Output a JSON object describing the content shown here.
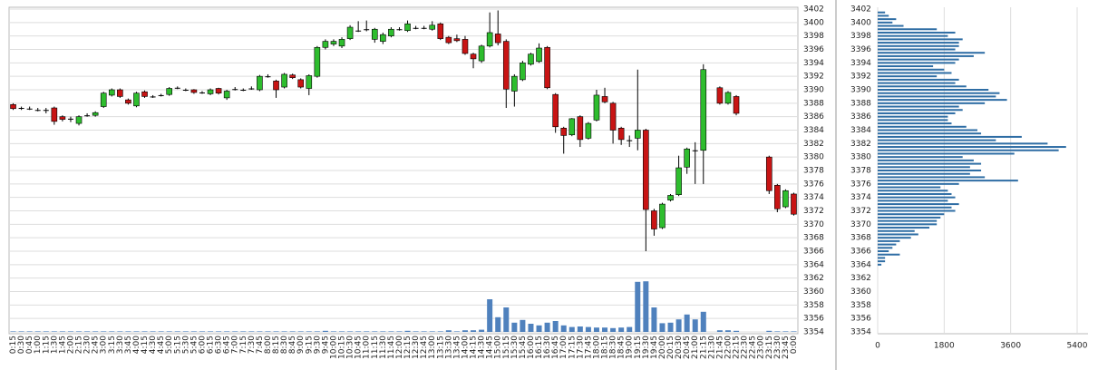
{
  "chart_data": [
    {
      "type": "candlestick",
      "categories": [
        "0:15",
        "0:30",
        "0:45",
        "1:00",
        "1:15",
        "1:30",
        "1:45",
        "2:00",
        "2:15",
        "2:30",
        "2:45",
        "3:00",
        "3:15",
        "3:30",
        "3:45",
        "4:00",
        "4:15",
        "4:30",
        "4:45",
        "5:00",
        "5:15",
        "5:30",
        "5:45",
        "6:00",
        "6:15",
        "6:30",
        "6:45",
        "7:00",
        "7:15",
        "7:30",
        "7:45",
        "8:00",
        "8:15",
        "8:30",
        "8:45",
        "9:00",
        "9:15",
        "9:30",
        "9:45",
        "10:00",
        "10:15",
        "10:30",
        "10:45",
        "11:00",
        "11:15",
        "11:30",
        "11:45",
        "12:00",
        "12:15",
        "12:30",
        "12:45",
        "13:00",
        "13:15",
        "13:30",
        "13:45",
        "14:00",
        "14:15",
        "14:30",
        "14:45",
        "15:00",
        "15:15",
        "15:30",
        "15:45",
        "16:00",
        "16:15",
        "16:30",
        "16:45",
        "17:00",
        "17:15",
        "17:30",
        "17:45",
        "18:00",
        "18:15",
        "18:30",
        "18:45",
        "19:00",
        "19:15",
        "19:30",
        "19:45",
        "20:00",
        "20:15",
        "20:30",
        "20:45",
        "21:00",
        "21:15",
        "21:30",
        "21:45",
        "22:00",
        "22:15",
        "22:30",
        "22:45",
        "23:00",
        "23:15",
        "23:30",
        "23:45",
        "0:00"
      ],
      "open": [
        3387.8,
        3387.3,
        3387.2,
        3387,
        3387,
        3387.3,
        3386,
        3385.7,
        3385,
        3386.2,
        3386.2,
        3387.5,
        3389.2,
        3390,
        3388.5,
        3387.6,
        3389.7,
        3389,
        3389.2,
        3389.3,
        3390.3,
        3390,
        3390,
        3389.6,
        3389.4,
        3390.2,
        3388.8,
        3390.1,
        3390,
        3390.2,
        3390,
        3392,
        3391.3,
        3390.4,
        3392.2,
        3391.5,
        3390.2,
        3392,
        3396.3,
        3396.8,
        3396.5,
        3397.6,
        3398.8,
        3399,
        3397.5,
        3397.2,
        3398,
        3399,
        3398.8,
        3399.2,
        3399.2,
        3399,
        3399.8,
        3397.8,
        3397.6,
        3397.5,
        3395.3,
        3394.3,
        3396.5,
        3398.3,
        3397.2,
        3389.8,
        3391.5,
        3393.8,
        3394.2,
        3396.3,
        3389.3,
        3384.3,
        3383.3,
        3386,
        3382.8,
        3385.5,
        3389,
        3388,
        3384.3,
        3382.5,
        3382.8,
        3384,
        3372,
        3369.5,
        3373.6,
        3374.4,
        3378.5,
        3381,
        3381,
        null,
        3390.3,
        3388,
        3389,
        null,
        null,
        null,
        3380,
        3375.8,
        3372.6,
        3374.5
      ],
      "high": [
        3388,
        3387.5,
        3387.5,
        3387.3,
        3387.3,
        3387.5,
        3386.2,
        3386,
        3386.2,
        3386.5,
        3386.8,
        3389.7,
        3390.2,
        3390.2,
        3388.7,
        3389.7,
        3389.9,
        3389.2,
        3389.4,
        3390.4,
        3390.5,
        3390.2,
        3390.1,
        3389.8,
        3390.2,
        3390.3,
        3390,
        3390.4,
        3390.2,
        3390.5,
        3392.2,
        3392.3,
        3391.5,
        3392.5,
        3392.4,
        3391.7,
        3392.3,
        3396.5,
        3397.5,
        3397.5,
        3397.8,
        3399.6,
        3400.2,
        3400.3,
        3399.2,
        3398.5,
        3399.3,
        3399.3,
        3400.3,
        3399.5,
        3399.5,
        3400.2,
        3400,
        3398,
        3398.2,
        3398,
        3395.5,
        3396.7,
        3401.5,
        3401.8,
        3397.5,
        3392.3,
        3394.3,
        3395.5,
        3396.9,
        3396.5,
        3389.5,
        3384.5,
        3385.8,
        3386.2,
        3385.2,
        3390,
        3390.3,
        3388.2,
        3384.5,
        3383.2,
        3393,
        3384.2,
        3372.3,
        3373.2,
        3374.5,
        3380.2,
        3381.4,
        3382.2,
        3393.8,
        null,
        3390.5,
        3389.8,
        3389.2,
        null,
        null,
        null,
        3380.2,
        3376,
        3375.2,
        3374.7
      ],
      "low": [
        3387,
        3387,
        3387,
        3386.8,
        3386.5,
        3384.8,
        3385.3,
        3385.2,
        3384.7,
        3386,
        3386,
        3387.3,
        3389,
        3388.8,
        3387.8,
        3387.4,
        3388.8,
        3388.8,
        3389,
        3389.1,
        3390.1,
        3389.8,
        3389.4,
        3389.4,
        3389.2,
        3389.3,
        3388.5,
        3389.9,
        3389.8,
        3390,
        3389.8,
        3391.8,
        3388.8,
        3390.2,
        3391.6,
        3390.2,
        3389.2,
        3391.8,
        3396,
        3396.5,
        3396.2,
        3397.4,
        3398.6,
        3398.7,
        3397,
        3396.8,
        3397.8,
        3398.8,
        3398.6,
        3399,
        3399,
        3398.8,
        3397.4,
        3396.8,
        3397.1,
        3395.2,
        3393.2,
        3394,
        3396.3,
        3396.6,
        3387.3,
        3387.5,
        3391.3,
        3393.6,
        3394,
        3390.1,
        3383.6,
        3380.5,
        3383.1,
        3381.5,
        3382.6,
        3385.3,
        3388,
        3382,
        3381.8,
        3381.5,
        3381,
        3366,
        3368.3,
        3369.3,
        3373.4,
        3374.2,
        3377.5,
        3376,
        3376,
        null,
        3387.8,
        3387.8,
        3386.2,
        null,
        null,
        null,
        3374.5,
        3371.8,
        3372.4,
        3371.3
      ],
      "close": [
        3387.2,
        3387.3,
        3387.2,
        3387,
        3387,
        3385.3,
        3385.6,
        3385.7,
        3386,
        3386.2,
        3386.6,
        3389.5,
        3390,
        3389,
        3388,
        3389.5,
        3389,
        3389,
        3389.2,
        3390.2,
        3390.3,
        3390,
        3389.6,
        3389.6,
        3390,
        3389.5,
        3389.8,
        3390.1,
        3390,
        3390.2,
        3392,
        3392,
        3390,
        3392.3,
        3391.8,
        3390.4,
        3392.1,
        3396.3,
        3397.2,
        3397.2,
        3397.5,
        3399.3,
        3398.8,
        3399,
        3399,
        3398.2,
        3399,
        3399,
        3399.8,
        3399.2,
        3399.2,
        3399.6,
        3397.6,
        3397,
        3397.3,
        3395.4,
        3394.6,
        3396.5,
        3398.5,
        3397,
        3390.1,
        3392,
        3394,
        3395.3,
        3396.2,
        3390.3,
        3384.5,
        3383.2,
        3385.7,
        3382.6,
        3385,
        3389.2,
        3388.2,
        3384,
        3382.6,
        3382.5,
        3384,
        3372.2,
        3369.3,
        3373,
        3374.3,
        3378.4,
        3381.2,
        3381,
        3393,
        null,
        3388,
        3389.6,
        3386.5,
        null,
        null,
        null,
        3375,
        3372.3,
        3375,
        3371.5
      ],
      "volume": [
        1,
        1,
        1,
        1,
        1,
        1,
        1,
        1,
        1,
        1,
        1,
        1,
        1,
        1,
        1,
        1,
        1,
        1,
        1,
        1,
        1,
        1,
        1,
        1,
        1,
        1,
        1,
        1,
        1,
        1,
        1,
        1,
        1,
        1,
        1,
        1,
        1,
        1,
        2,
        1,
        1,
        1,
        1,
        1,
        1,
        1,
        1,
        1,
        2,
        1,
        1,
        1,
        1,
        3,
        1,
        3,
        3,
        4,
        60,
        27,
        45,
        17,
        22,
        15,
        12,
        17,
        20,
        12,
        9,
        10,
        9,
        8,
        8,
        7,
        8,
        9,
        92,
        93,
        45,
        16,
        17,
        23,
        32,
        23,
        37,
        null,
        3,
        3,
        2,
        null,
        null,
        null,
        2,
        1,
        1,
        1
      ],
      "colors": {
        "up": "#2ebd2e",
        "down": "#c81414",
        "flat": "#000000"
      },
      "volume_color": "#4f81bd",
      "ylim": [
        3354,
        3402
      ],
      "yticks": [
        3354,
        3356,
        3358,
        3360,
        3362,
        3364,
        3366,
        3368,
        3370,
        3372,
        3374,
        3376,
        3378,
        3380,
        3382,
        3384,
        3386,
        3388,
        3390,
        3392,
        3394,
        3396,
        3398,
        3400,
        3402
      ],
      "grid": true
    },
    {
      "type": "barh",
      "y": [
        3401.5,
        3401,
        3400.5,
        3400,
        3399.5,
        3399,
        3398.5,
        3398,
        3397.5,
        3397,
        3396.5,
        3396,
        3395.5,
        3395,
        3394.5,
        3394,
        3393.5,
        3393,
        3392.5,
        3392,
        3391.5,
        3391,
        3390.5,
        3390,
        3389.5,
        3389,
        3388.5,
        3388,
        3387.5,
        3387,
        3386.5,
        3386,
        3385.5,
        3385,
        3384.5,
        3384,
        3383.5,
        3383,
        3382.5,
        3382,
        3381.5,
        3381,
        3380.5,
        3380,
        3379.5,
        3379,
        3378.5,
        3378,
        3377.5,
        3377,
        3376.5,
        3376,
        3375.5,
        3375,
        3374.5,
        3374,
        3373.5,
        3373,
        3372.5,
        3372,
        3371.5,
        3371,
        3370.5,
        3370,
        3369.5,
        3369,
        3368.5,
        3368,
        3367.5,
        3367,
        3366.5,
        3366,
        3365.5,
        3365,
        3364.5,
        3364
      ],
      "values": [
        200,
        300,
        500,
        400,
        700,
        1600,
        2100,
        1900,
        2300,
        2200,
        2200,
        2100,
        2900,
        2600,
        2200,
        2100,
        1500,
        1800,
        2000,
        1600,
        2200,
        2100,
        2400,
        3000,
        3300,
        3200,
        3500,
        2900,
        2200,
        2300,
        2100,
        1900,
        1900,
        2000,
        2400,
        2700,
        2800,
        3900,
        3200,
        4600,
        5100,
        4900,
        3700,
        2300,
        2600,
        2800,
        2500,
        2800,
        2500,
        2900,
        3800,
        2200,
        1700,
        1900,
        2000,
        2100,
        1900,
        2200,
        2000,
        2100,
        1800,
        1700,
        1600,
        1600,
        1400,
        1000,
        1100,
        900,
        600,
        500,
        400,
        300,
        600,
        200,
        200,
        100
      ],
      "color": "#2e6da4",
      "xlim": [
        0,
        5400
      ],
      "xticks": [
        0,
        1800,
        3600,
        5400
      ],
      "ylim": [
        3354,
        3402
      ],
      "yticks": [
        3354,
        3356,
        3358,
        3360,
        3362,
        3364,
        3366,
        3368,
        3370,
        3372,
        3374,
        3376,
        3378,
        3380,
        3382,
        3384,
        3386,
        3388,
        3390,
        3392,
        3394,
        3396,
        3398,
        3400,
        3402
      ],
      "grid": true
    }
  ]
}
